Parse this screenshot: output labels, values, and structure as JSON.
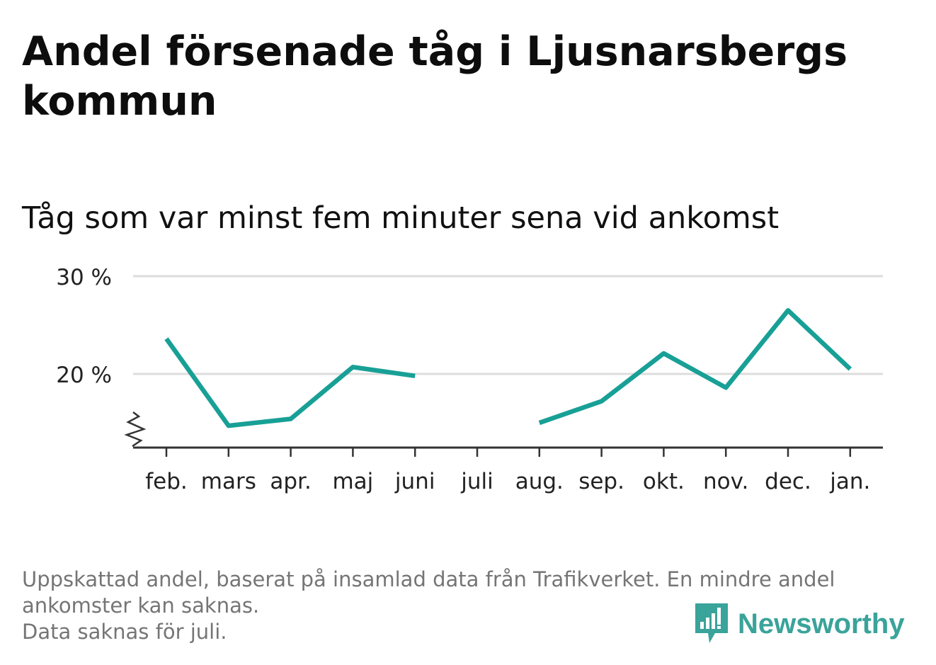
{
  "title": "Andel försenade tåg i Ljusnarsbergs kommun",
  "subtitle": "Tåg som var minst fem minuter sena vid ankomst",
  "chart_data": {
    "type": "line",
    "categories": [
      "feb.",
      "mars",
      "apr.",
      "maj",
      "juni",
      "juli",
      "aug.",
      "sep.",
      "okt.",
      "nov.",
      "dec.",
      "jan."
    ],
    "series": [
      {
        "values": [
          23.6,
          14.7,
          15.4,
          20.7,
          19.8,
          null,
          15.0,
          17.2,
          22.1,
          18.6,
          26.5,
          20.5
        ]
      }
    ],
    "y_ticks": [
      20,
      30
    ],
    "y_tick_labels": [
      "20 %",
      "30 %"
    ],
    "ylim": [
      13,
      30
    ],
    "axis_break": true,
    "grid": true,
    "line_color": "#18a096"
  },
  "footer": {
    "note_line1": "Uppskattad andel, baserat på insamlad data från Trafikverket. En mindre andel",
    "note_line2": "ankomster kan saknas.",
    "note_line3": "Data saknas för juli."
  },
  "brand": {
    "name": "Newsworthy",
    "icon": "newsworthy-logo-icon",
    "color": "#3aa39a"
  }
}
